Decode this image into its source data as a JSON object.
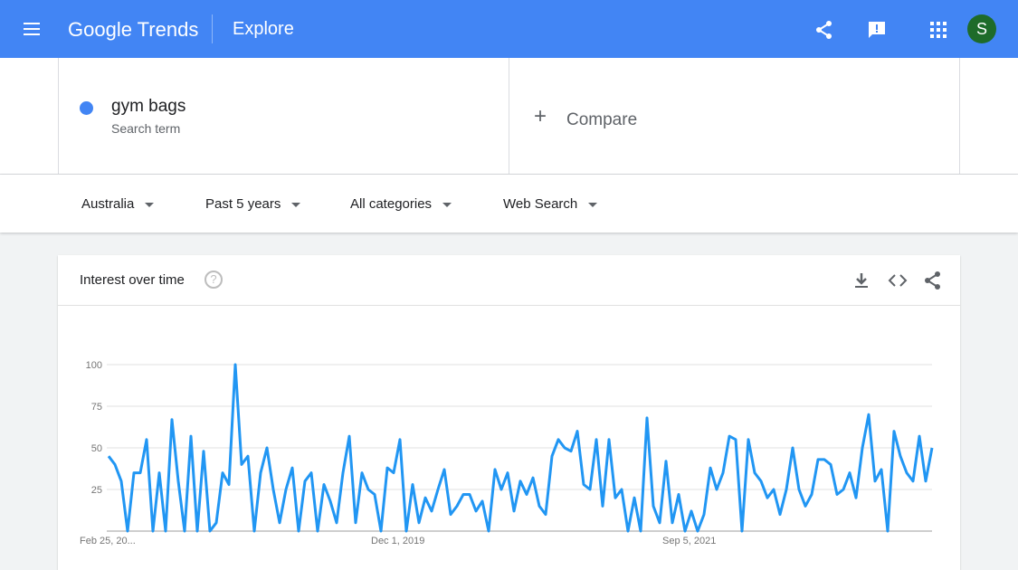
{
  "header": {
    "logo_google": "Google",
    "logo_trends": "Trends",
    "page": "Explore",
    "avatar": "S"
  },
  "search": {
    "term": "gym bags",
    "term_type": "Search term",
    "compare": "Compare"
  },
  "filters": [
    "Australia",
    "Past 5 years",
    "All categories",
    "Web Search"
  ],
  "chart_data": {
    "type": "line",
    "title": "Interest over time",
    "categories": [
      "Feb 25, 20...",
      null,
      null,
      null,
      null,
      null,
      null,
      null,
      null,
      null,
      null,
      null,
      null,
      null,
      null,
      null,
      null,
      null,
      null,
      null,
      null,
      null,
      null,
      null,
      null,
      null,
      null,
      null,
      null,
      null,
      null,
      null,
      null,
      null,
      null,
      null,
      null,
      null,
      null,
      null,
      null,
      null,
      null,
      null,
      null,
      null,
      "Dec 1, 2019",
      null,
      null,
      null,
      null,
      null,
      null,
      null,
      null,
      null,
      null,
      null,
      null,
      null,
      null,
      null,
      null,
      null,
      null,
      null,
      null,
      null,
      null,
      null,
      null,
      null,
      null,
      null,
      null,
      null,
      null,
      null,
      null,
      null,
      null,
      null,
      null,
      null,
      null,
      null,
      null,
      null,
      null,
      null,
      null,
      null,
      "Sep 5, 2021",
      null,
      null,
      null,
      null,
      null,
      null,
      null,
      null,
      null,
      null,
      null,
      null,
      null,
      null,
      null,
      null,
      null,
      null,
      null,
      null,
      null,
      null,
      null,
      null,
      null,
      null,
      null,
      null,
      null,
      null,
      null,
      null,
      null,
      null,
      null,
      null,
      null,
      null
    ],
    "series": [
      {
        "name": "gym bags",
        "color": "#2196f3",
        "values": [
          45,
          40,
          30,
          0,
          35,
          35,
          55,
          0,
          35,
          0,
          67,
          30,
          0,
          57,
          0,
          48,
          0,
          5,
          35,
          28,
          100,
          40,
          45,
          0,
          35,
          50,
          25,
          5,
          25,
          38,
          0,
          30,
          35,
          0,
          28,
          18,
          5,
          35,
          57,
          5,
          35,
          25,
          22,
          0,
          38,
          35,
          55,
          0,
          28,
          5,
          20,
          12,
          25,
          37,
          10,
          15,
          22,
          22,
          12,
          18,
          0,
          37,
          25,
          35,
          12,
          30,
          22,
          32,
          15,
          10,
          45,
          55,
          50,
          48,
          60,
          28,
          25,
          55,
          15,
          55,
          20,
          25,
          0,
          20,
          0,
          68,
          15,
          5,
          42,
          5,
          22,
          0,
          12,
          0,
          10,
          38,
          25,
          35,
          57,
          55,
          0,
          55,
          35,
          30,
          20,
          25,
          10,
          25,
          50,
          25,
          15,
          22,
          43,
          43,
          40,
          22,
          25,
          35,
          20,
          50,
          70,
          30,
          37,
          0,
          60,
          45,
          35,
          30,
          57,
          30,
          50
        ]
      }
    ],
    "ylim": [
      0,
      100
    ],
    "yticks": [
      25,
      50,
      75,
      100
    ],
    "grid": true
  }
}
